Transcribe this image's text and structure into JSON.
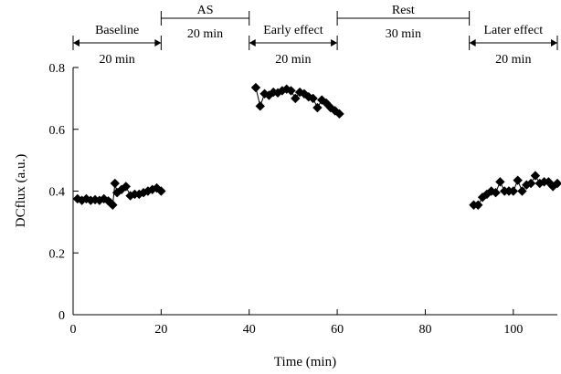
{
  "chart_data": {
    "type": "scatter",
    "title": "",
    "xlabel": "Time (min)",
    "ylabel": "DCflux (a.u.)",
    "xlim": [
      0,
      110
    ],
    "ylim": [
      0,
      0.8
    ],
    "x_ticks": [
      0,
      20,
      40,
      60,
      80,
      100
    ],
    "y_ticks": [
      0,
      0.2,
      0.4,
      0.6,
      0.8
    ],
    "x_tick_labels": [
      "0",
      "20",
      "40",
      "60",
      "80",
      "100"
    ],
    "y_tick_labels": [
      "0",
      "0.2",
      "0.4",
      "0.6",
      "0.8"
    ],
    "grid": false,
    "marker": "diamond",
    "marker_color": "#000000",
    "periods": [
      {
        "label": "Baseline",
        "duration": "20 min",
        "start": 0,
        "end": 20
      },
      {
        "label": "AS",
        "duration": "20 min",
        "start": 20,
        "end": 40
      },
      {
        "label": "Early effect",
        "duration": "20 min",
        "start": 40,
        "end": 60
      },
      {
        "label": "Rest",
        "duration": "30 min",
        "start": 60,
        "end": 90
      },
      {
        "label": "Later effect",
        "duration": "20 min",
        "start": 90,
        "end": 110
      }
    ],
    "series": [
      {
        "segment": "baseline",
        "points": [
          {
            "x": 1,
            "y": 0.375
          },
          {
            "x": 2,
            "y": 0.37
          },
          {
            "x": 3,
            "y": 0.375
          },
          {
            "x": 4,
            "y": 0.37
          },
          {
            "x": 5,
            "y": 0.372
          },
          {
            "x": 6,
            "y": 0.37
          },
          {
            "x": 7,
            "y": 0.375
          },
          {
            "x": 8,
            "y": 0.368
          },
          {
            "x": 8.5,
            "y": 0.362
          },
          {
            "x": 9,
            "y": 0.355
          },
          {
            "x": 9.5,
            "y": 0.425
          },
          {
            "x": 10,
            "y": 0.395
          },
          {
            "x": 11,
            "y": 0.405
          },
          {
            "x": 12,
            "y": 0.415
          },
          {
            "x": 13,
            "y": 0.385
          },
          {
            "x": 14,
            "y": 0.39
          },
          {
            "x": 15,
            "y": 0.39
          },
          {
            "x": 16,
            "y": 0.395
          },
          {
            "x": 17,
            "y": 0.4
          },
          {
            "x": 18,
            "y": 0.405
          },
          {
            "x": 19,
            "y": 0.41
          },
          {
            "x": 20,
            "y": 0.4
          }
        ]
      },
      {
        "segment": "early-effect",
        "points": [
          {
            "x": 41.5,
            "y": 0.735
          },
          {
            "x": 42.5,
            "y": 0.675
          },
          {
            "x": 43.5,
            "y": 0.715
          },
          {
            "x": 44.5,
            "y": 0.71
          },
          {
            "x": 45.5,
            "y": 0.72
          },
          {
            "x": 46.5,
            "y": 0.718
          },
          {
            "x": 47.5,
            "y": 0.725
          },
          {
            "x": 48.5,
            "y": 0.73
          },
          {
            "x": 49.5,
            "y": 0.725
          },
          {
            "x": 50.5,
            "y": 0.7
          },
          {
            "x": 51.5,
            "y": 0.72
          },
          {
            "x": 52.5,
            "y": 0.715
          },
          {
            "x": 53.5,
            "y": 0.705
          },
          {
            "x": 54.5,
            "y": 0.7
          },
          {
            "x": 55.5,
            "y": 0.67
          },
          {
            "x": 56.5,
            "y": 0.695
          },
          {
            "x": 57.5,
            "y": 0.685
          },
          {
            "x": 58.5,
            "y": 0.67
          },
          {
            "x": 59.5,
            "y": 0.66
          },
          {
            "x": 60.5,
            "y": 0.65
          }
        ]
      },
      {
        "segment": "later-effect",
        "points": [
          {
            "x": 91,
            "y": 0.355
          },
          {
            "x": 92,
            "y": 0.355
          },
          {
            "x": 93,
            "y": 0.38
          },
          {
            "x": 94,
            "y": 0.39
          },
          {
            "x": 95,
            "y": 0.4
          },
          {
            "x": 96,
            "y": 0.395
          },
          {
            "x": 97,
            "y": 0.43
          },
          {
            "x": 98,
            "y": 0.4
          },
          {
            "x": 99,
            "y": 0.4
          },
          {
            "x": 100,
            "y": 0.4
          },
          {
            "x": 101,
            "y": 0.435
          },
          {
            "x": 102,
            "y": 0.4
          },
          {
            "x": 103,
            "y": 0.42
          },
          {
            "x": 104,
            "y": 0.425
          },
          {
            "x": 105,
            "y": 0.45
          },
          {
            "x": 106,
            "y": 0.425
          },
          {
            "x": 107,
            "y": 0.43
          },
          {
            "x": 108,
            "y": 0.43
          },
          {
            "x": 109,
            "y": 0.415
          },
          {
            "x": 110,
            "y": 0.425
          }
        ]
      }
    ]
  }
}
